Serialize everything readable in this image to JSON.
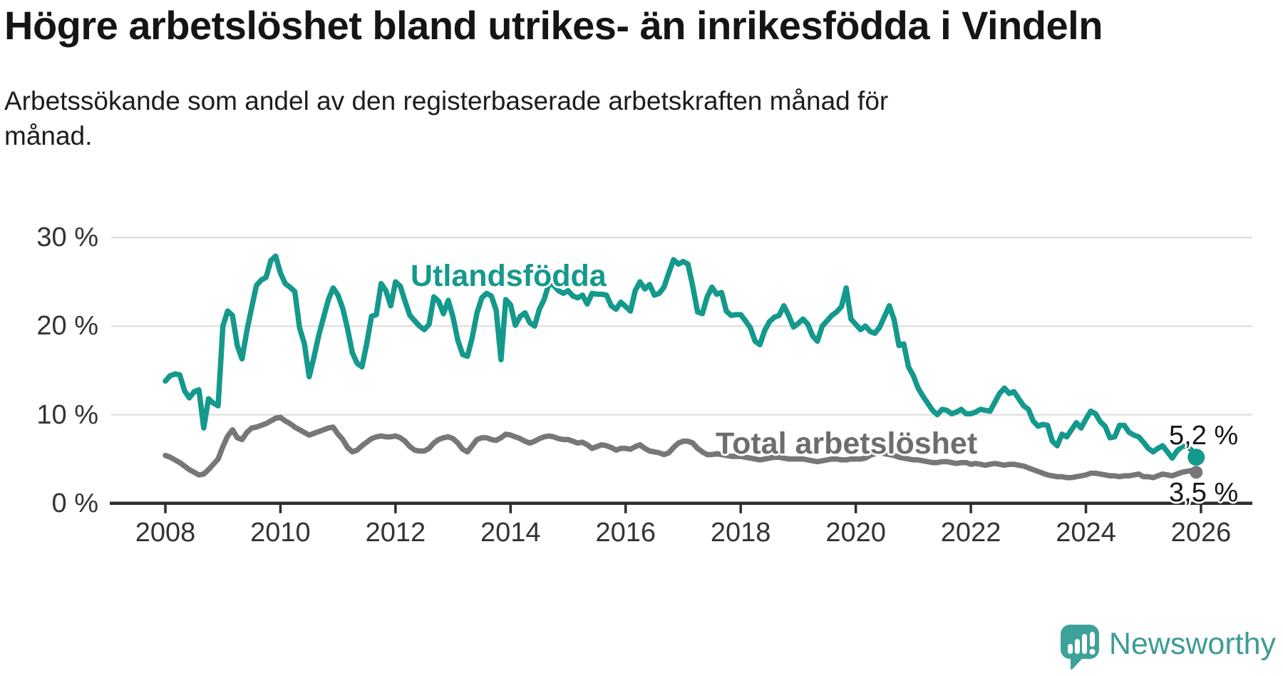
{
  "header": {
    "subtitle_line1": "Arbetssökande som andel av den registerbaserade arbetskraften månad för",
    "subtitle_line2": "månad."
  },
  "footer": {
    "brand": "Newsworthy"
  },
  "colors": {
    "foreign_born_line": "#14998C",
    "total_line": "#77777A",
    "total_label": "#6D6D71",
    "gridline": "#DBDBDB",
    "axis": "#2E2E2E",
    "brand_teal": "#3EA29A"
  },
  "chart_data": {
    "type": "line",
    "title": "Högre arbetslöshet bland utrikes- än inrikesfödda i Vindeln",
    "subtitle": "Arbetssökande som andel av den registerbaserade arbetskraften månad för månad.",
    "x_monthly_from_year": 2008,
    "x_tick_labels": [
      "2008",
      "2010",
      "2012",
      "2014",
      "2016",
      "2018",
      "2020",
      "2022",
      "2024",
      "2026"
    ],
    "y_ticks": [
      0,
      10,
      20,
      30
    ],
    "y_tick_labels": [
      "0 %",
      "10 %",
      "20 %",
      "30 %"
    ],
    "ylim": [
      0,
      30
    ],
    "grid": true,
    "legend_position": "inline-labels",
    "series": [
      {
        "name": "Utlandsfödda",
        "color": "#14998C",
        "end_label": "5,2 %",
        "values": [
          13.8,
          14.4,
          14.6,
          14.5,
          12.7,
          11.9,
          12.6,
          12.8,
          8.5,
          11.8,
          11.3,
          11.0,
          20.0,
          21.7,
          21.2,
          17.8,
          16.3,
          19.5,
          22.1,
          24.6,
          25.2,
          25.5,
          27.4,
          27.9,
          26.0,
          24.8,
          24.4,
          23.9,
          19.8,
          18.0,
          14.3,
          16.5,
          19.0,
          21.0,
          23.0,
          24.3,
          23.5,
          22.0,
          19.7,
          17.0,
          15.8,
          15.4,
          18.0,
          21.1,
          21.3,
          24.8,
          24.0,
          22.3,
          25.0,
          24.5,
          22.8,
          21.2,
          20.6,
          20.0,
          19.6,
          20.2,
          23.3,
          22.8,
          21.4,
          22.9,
          21.0,
          18.4,
          16.8,
          16.6,
          18.7,
          21.5,
          23.2,
          23.7,
          23.4,
          21.8,
          16.2,
          23.0,
          22.4,
          20.1,
          21.1,
          21.5,
          20.4,
          20.0,
          21.9,
          23.0,
          24.8,
          24.6,
          24.0,
          23.7,
          24.0,
          23.4,
          23.2,
          23.5,
          22.5,
          23.7,
          23.6,
          23.6,
          23.5,
          22.3,
          21.9,
          22.7,
          22.2,
          21.7,
          24.0,
          25.0,
          24.2,
          24.7,
          23.5,
          23.7,
          24.4,
          26.0,
          27.5,
          27.0,
          27.3,
          27.0,
          24.5,
          21.6,
          21.4,
          23.3,
          24.4,
          23.6,
          23.8,
          21.7,
          21.2,
          21.3,
          21.3,
          20.6,
          19.8,
          18.3,
          17.9,
          19.5,
          20.5,
          21.0,
          21.2,
          22.3,
          21.2,
          19.9,
          20.3,
          20.8,
          20.2,
          18.9,
          18.3,
          20.0,
          20.6,
          21.2,
          21.6,
          22.2,
          24.3,
          20.8,
          20.2,
          19.6,
          20.0,
          19.4,
          19.2,
          19.9,
          21.1,
          22.3,
          20.7,
          17.8,
          18.0,
          15.4,
          14.4,
          13.0,
          12.1,
          11.3,
          10.5,
          10.0,
          10.6,
          10.5,
          10.1,
          10.3,
          10.6,
          10.1,
          10.1,
          10.3,
          10.6,
          10.5,
          10.4,
          11.4,
          12.4,
          13.0,
          12.4,
          12.6,
          11.8,
          11.0,
          10.6,
          9.3,
          8.7,
          8.9,
          8.8,
          7.0,
          6.5,
          7.8,
          7.5,
          8.3,
          9.1,
          8.5,
          9.5,
          10.4,
          10.1,
          9.2,
          8.7,
          7.4,
          7.5,
          8.8,
          8.8,
          8.0,
          7.7,
          7.5,
          6.9,
          6.2,
          5.8,
          6.2,
          6.5,
          5.8,
          5.1,
          5.9,
          6.4,
          6.5,
          6.0,
          5.2
        ]
      },
      {
        "name": "Total arbetslöshet",
        "color": "#77777A",
        "end_label": "3,5 %",
        "values": [
          5.4,
          5.2,
          4.9,
          4.6,
          4.2,
          3.8,
          3.5,
          3.2,
          3.3,
          3.8,
          4.4,
          5.0,
          6.4,
          7.6,
          8.3,
          7.4,
          7.2,
          8.0,
          8.5,
          8.6,
          8.8,
          9.0,
          9.3,
          9.6,
          9.7,
          9.3,
          9.0,
          8.6,
          8.3,
          8.0,
          7.7,
          7.9,
          8.1,
          8.3,
          8.5,
          8.6,
          7.8,
          7.2,
          6.3,
          5.8,
          6.0,
          6.5,
          6.9,
          7.3,
          7.5,
          7.6,
          7.5,
          7.5,
          7.6,
          7.4,
          7.0,
          6.4,
          6.0,
          5.9,
          5.9,
          6.2,
          6.8,
          7.2,
          7.4,
          7.5,
          7.3,
          6.8,
          6.1,
          5.8,
          6.5,
          7.2,
          7.4,
          7.4,
          7.2,
          7.1,
          7.4,
          7.8,
          7.7,
          7.5,
          7.3,
          7.0,
          6.8,
          7.0,
          7.3,
          7.5,
          7.6,
          7.5,
          7.3,
          7.2,
          7.2,
          7.0,
          6.8,
          6.9,
          6.6,
          6.2,
          6.4,
          6.6,
          6.5,
          6.3,
          6.0,
          6.2,
          6.2,
          6.1,
          6.4,
          6.6,
          6.2,
          5.9,
          5.8,
          5.7,
          5.5,
          5.7,
          6.3,
          6.8,
          7.0,
          7.0,
          6.8,
          6.2,
          5.8,
          5.5,
          5.5,
          5.6,
          5.5,
          5.4,
          5.3,
          5.3,
          5.3,
          5.2,
          5.1,
          5.0,
          4.9,
          5.0,
          5.1,
          5.2,
          5.2,
          5.1,
          5.0,
          5.0,
          5.0,
          5.0,
          4.9,
          4.8,
          4.7,
          4.8,
          4.9,
          5.0,
          5.0,
          4.9,
          4.9,
          5.0,
          5.0,
          5.0,
          5.1,
          5.4,
          5.6,
          5.7,
          5.6,
          5.5,
          5.4,
          5.2,
          5.1,
          5.0,
          4.9,
          4.9,
          4.8,
          4.7,
          4.6,
          4.6,
          4.7,
          4.7,
          4.6,
          4.5,
          4.6,
          4.6,
          4.4,
          4.5,
          4.4,
          4.3,
          4.4,
          4.5,
          4.4,
          4.3,
          4.4,
          4.4,
          4.3,
          4.2,
          4.0,
          3.8,
          3.6,
          3.4,
          3.2,
          3.1,
          3.0,
          3.0,
          2.9,
          2.9,
          3.0,
          3.1,
          3.2,
          3.4,
          3.4,
          3.3,
          3.2,
          3.1,
          3.1,
          3.0,
          3.1,
          3.1,
          3.2,
          3.3,
          3.0,
          3.0,
          2.9,
          3.1,
          3.3,
          3.2,
          3.1,
          3.3,
          3.5,
          3.6,
          3.7,
          3.5
        ]
      }
    ]
  }
}
